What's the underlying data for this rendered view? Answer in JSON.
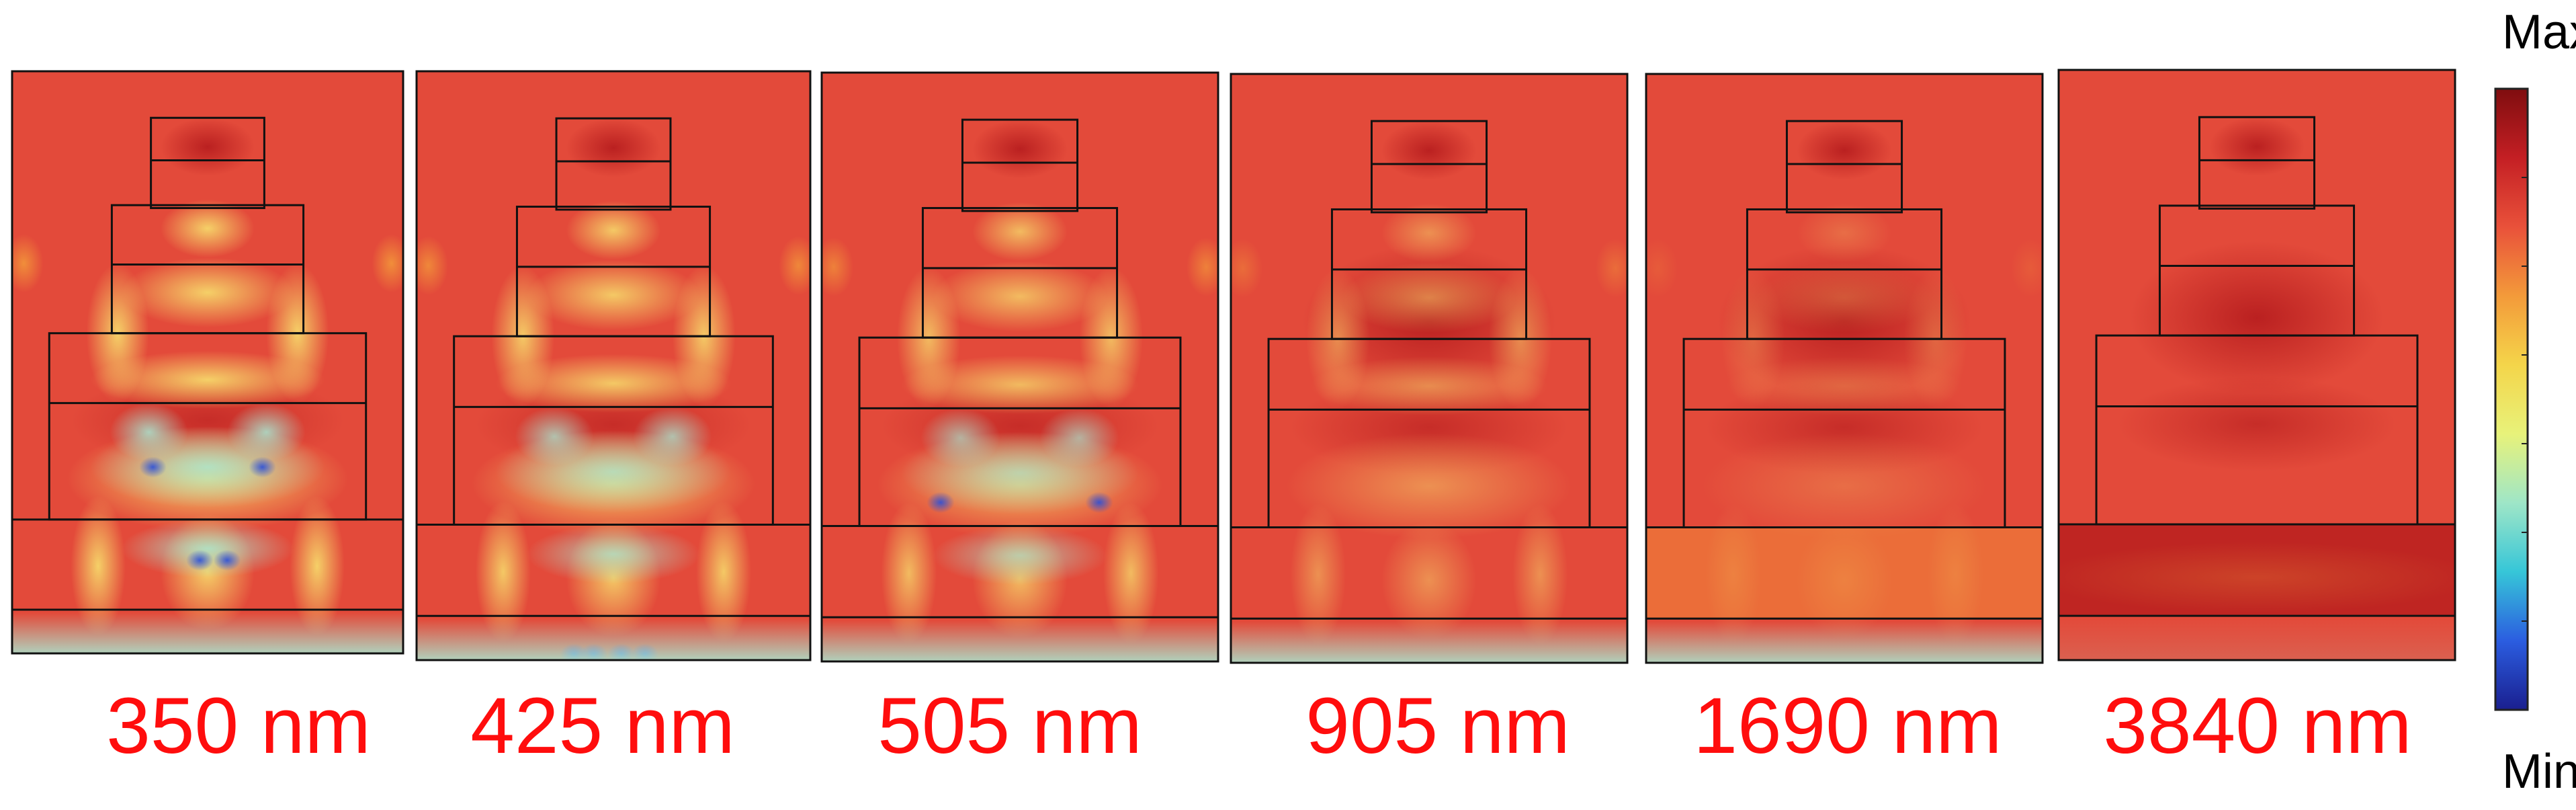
{
  "panels": [
    {
      "wavelength": "350 nm"
    },
    {
      "wavelength": "425 nm"
    },
    {
      "wavelength": "505 nm"
    },
    {
      "wavelength": "905 nm"
    },
    {
      "wavelength": "1690 nm"
    },
    {
      "wavelength": "3840 nm"
    }
  ],
  "colorbar": {
    "max_label": "Max",
    "min_label": "Min",
    "stops": [
      "#1a1f8f",
      "#2b5de0",
      "#36c6d8",
      "#9fe6c7",
      "#e8f27a",
      "#f4d54a",
      "#f39a3a",
      "#e9513a",
      "#c41f24",
      "#7f0d0f"
    ]
  },
  "colors": {
    "label_red": "#ff0d0d",
    "field_base": "#e34a3a",
    "field_hot": "#b81e1f",
    "field_mid": "#f6d76a",
    "field_cool": "#a8e8d2",
    "field_min": "#2b4fd8"
  }
}
